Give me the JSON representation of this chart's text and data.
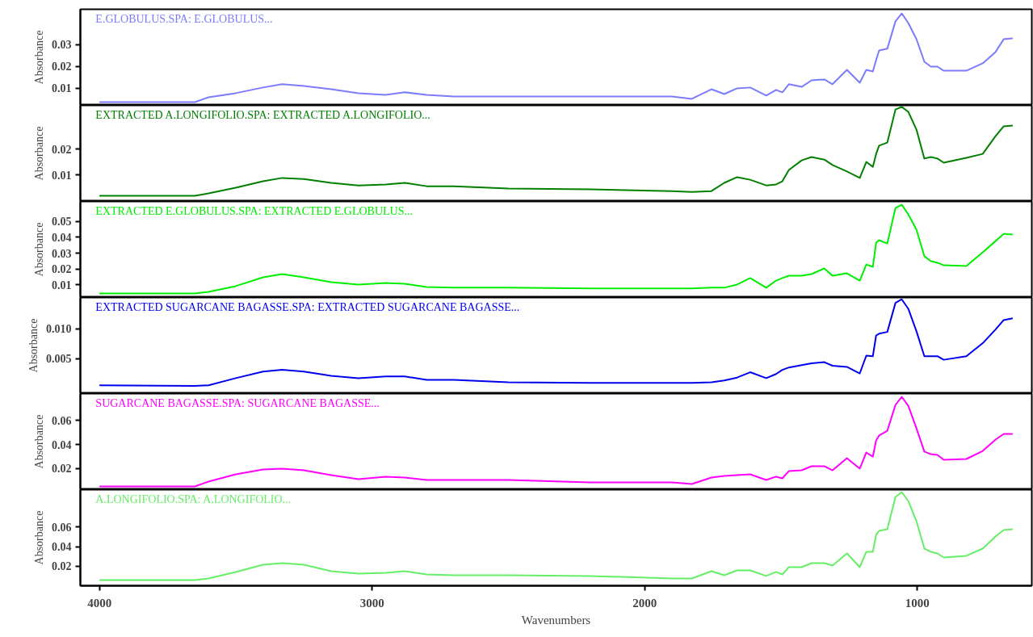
{
  "chart_data": [
    {
      "type": "line",
      "ylabel": "Absorbance",
      "tick_labels": "y",
      "xlim": [
        4070,
        580
      ],
      "ylim": [
        0.0022,
        0.0463
      ],
      "yticks": [
        0.01,
        0.02,
        0.03
      ],
      "x": [
        4000,
        3650,
        3600,
        3500,
        3400,
        3330,
        3250,
        3150,
        3050,
        2950,
        2880,
        2800,
        2700,
        2500,
        2200,
        1900,
        1827,
        1755,
        1708,
        1661,
        1613,
        1554,
        1518,
        1495,
        1471,
        1424,
        1388,
        1341,
        1311,
        1258,
        1211,
        1187,
        1163,
        1151,
        1140,
        1110,
        1080,
        1057,
        1033,
        1003,
        974,
        950,
        926,
        903,
        820,
        760,
        713,
        683,
        650
      ],
      "series": [
        {
          "name": "E.GLOBULUS.SPA: E.GLOBULUS...",
          "color": "#7b7bff",
          "values": [
            0.0037,
            0.0037,
            0.0059,
            0.0078,
            0.0104,
            0.0119,
            0.0111,
            0.0096,
            0.0078,
            0.007,
            0.0082,
            0.007,
            0.0063,
            0.0063,
            0.0063,
            0.0063,
            0.0052,
            0.0096,
            0.0074,
            0.01,
            0.0104,
            0.0067,
            0.0093,
            0.0082,
            0.0119,
            0.0107,
            0.0137,
            0.0141,
            0.0119,
            0.0185,
            0.0126,
            0.0185,
            0.0178,
            0.023,
            0.0274,
            0.0282,
            0.0408,
            0.0444,
            0.04,
            0.0326,
            0.0222,
            0.02,
            0.02,
            0.0181,
            0.0181,
            0.0215,
            0.0267,
            0.0326,
            0.033
          ]
        }
      ]
    },
    {
      "type": "line",
      "ylabel": "Absorbance",
      "tick_labels": "y",
      "xlim": [
        4070,
        580
      ],
      "ylim": [
        -0.0003,
        0.0369
      ],
      "yticks": [
        0.01,
        0.02
      ],
      "x": [
        4000,
        3650,
        3600,
        3500,
        3400,
        3330,
        3250,
        3150,
        3050,
        2950,
        2880,
        2800,
        2700,
        2500,
        2200,
        1900,
        1827,
        1755,
        1708,
        1661,
        1613,
        1554,
        1518,
        1495,
        1471,
        1424,
        1388,
        1341,
        1311,
        1258,
        1211,
        1187,
        1163,
        1151,
        1140,
        1110,
        1080,
        1057,
        1033,
        1003,
        974,
        950,
        926,
        903,
        820,
        760,
        713,
        683,
        650
      ],
      "series": [
        {
          "name": "EXTRACTED A.LONGIFOLIO.SPA: EXTRACTED A.LONGIFOLIO...",
          "color": "#007f00",
          "values": [
            0.0019,
            0.0019,
            0.0028,
            0.005,
            0.0075,
            0.0088,
            0.0084,
            0.0069,
            0.0059,
            0.0063,
            0.0069,
            0.0056,
            0.0056,
            0.0047,
            0.0044,
            0.0037,
            0.0034,
            0.0037,
            0.0069,
            0.0091,
            0.0081,
            0.0059,
            0.0063,
            0.0075,
            0.0119,
            0.0156,
            0.0169,
            0.0159,
            0.0138,
            0.0113,
            0.0088,
            0.015,
            0.0131,
            0.0181,
            0.0213,
            0.0225,
            0.0353,
            0.0363,
            0.0344,
            0.0275,
            0.0163,
            0.0169,
            0.0163,
            0.0147,
            0.0166,
            0.0181,
            0.025,
            0.0288,
            0.0291
          ]
        }
      ]
    },
    {
      "type": "line",
      "ylabel": "Absorbance",
      "tick_labels": "y",
      "xlim": [
        4070,
        580
      ],
      "ylim": [
        0.0019,
        0.0627
      ],
      "yticks": [
        0.01,
        0.02,
        0.03,
        0.04,
        0.05
      ],
      "x": [
        4000,
        3650,
        3600,
        3500,
        3400,
        3330,
        3250,
        3150,
        3050,
        2950,
        2880,
        2800,
        2700,
        2500,
        2200,
        1900,
        1827,
        1755,
        1708,
        1661,
        1613,
        1554,
        1518,
        1495,
        1471,
        1424,
        1388,
        1341,
        1311,
        1258,
        1211,
        1187,
        1163,
        1151,
        1140,
        1110,
        1080,
        1057,
        1033,
        1003,
        974,
        950,
        926,
        903,
        820,
        760,
        713,
        683,
        650
      ],
      "series": [
        {
          "name": "EXTRACTED E.GLOBULUS.SPA: EXTRACTED E.GLOBULUS...",
          "color": "#00ee00",
          "values": [
            0.0045,
            0.0045,
            0.0055,
            0.0091,
            0.0147,
            0.0167,
            0.0147,
            0.0116,
            0.0101,
            0.0111,
            0.0106,
            0.0086,
            0.0081,
            0.0081,
            0.0076,
            0.0076,
            0.0076,
            0.0081,
            0.0081,
            0.0101,
            0.0142,
            0.0081,
            0.0126,
            0.0142,
            0.0157,
            0.0157,
            0.0167,
            0.0203,
            0.0157,
            0.0172,
            0.0126,
            0.0228,
            0.0213,
            0.0366,
            0.0382,
            0.0361,
            0.0586,
            0.0606,
            0.0545,
            0.0448,
            0.028,
            0.0249,
            0.0239,
            0.0223,
            0.0218,
            0.0305,
            0.0376,
            0.0422,
            0.0417
          ]
        }
      ]
    },
    {
      "type": "line",
      "ylabel": "Absorbance",
      "tick_labels": "y",
      "xlim": [
        4070,
        580
      ],
      "ylim": [
        -0.0009,
        0.0153
      ],
      "yticks": [
        {
          "value": 0.005,
          "label": "0.005"
        },
        {
          "value": 0.01,
          "label": "0.010"
        }
      ],
      "x": [
        4000,
        3650,
        3600,
        3500,
        3400,
        3330,
        3250,
        3150,
        3050,
        2950,
        2880,
        2800,
        2700,
        2500,
        2200,
        1900,
        1827,
        1755,
        1708,
        1661,
        1613,
        1554,
        1518,
        1495,
        1471,
        1424,
        1388,
        1341,
        1311,
        1258,
        1211,
        1187,
        1163,
        1151,
        1140,
        1110,
        1080,
        1057,
        1033,
        1003,
        974,
        950,
        926,
        903,
        820,
        760,
        713,
        683,
        650
      ],
      "series": [
        {
          "name": "EXTRACTED SUGARCANE BAGASSE.SPA: EXTRACTED SUGARCANE BAGASSE...",
          "color": "#0000ee",
          "values": [
            0.0005,
            0.0004,
            0.0005,
            0.0017,
            0.0028,
            0.0031,
            0.0028,
            0.0021,
            0.0017,
            0.002,
            0.002,
            0.0014,
            0.0014,
            0.001,
            0.0009,
            0.0009,
            0.0009,
            0.001,
            0.0013,
            0.0018,
            0.0027,
            0.0017,
            0.0024,
            0.0031,
            0.0035,
            0.0039,
            0.0042,
            0.0044,
            0.0038,
            0.0036,
            0.0025,
            0.0055,
            0.0054,
            0.0089,
            0.0092,
            0.0095,
            0.0144,
            0.015,
            0.0134,
            0.0096,
            0.0054,
            0.0054,
            0.0054,
            0.0048,
            0.0054,
            0.0076,
            0.0099,
            0.0115,
            0.0118
          ]
        }
      ]
    },
    {
      "type": "line",
      "ylabel": "Absorbance",
      "tick_labels": "y",
      "xlim": [
        4070,
        580
      ],
      "ylim": [
        0.0024,
        0.0823
      ],
      "yticks": [
        0.02,
        0.04,
        0.06
      ],
      "x": [
        4000,
        3650,
        3600,
        3500,
        3400,
        3330,
        3250,
        3150,
        3050,
        2950,
        2880,
        2800,
        2700,
        2500,
        2200,
        1900,
        1827,
        1755,
        1708,
        1661,
        1613,
        1554,
        1518,
        1495,
        1471,
        1424,
        1388,
        1341,
        1311,
        1258,
        1211,
        1187,
        1163,
        1151,
        1140,
        1110,
        1080,
        1057,
        1033,
        1003,
        974,
        950,
        926,
        903,
        820,
        760,
        713,
        683,
        650
      ],
      "series": [
        {
          "name": "SUGARCANE BAGASSE.SPA: SUGARCANE BAGASSE...",
          "color": "#ff00ff",
          "values": [
            0.0051,
            0.0051,
            0.0091,
            0.0152,
            0.0192,
            0.0199,
            0.0185,
            0.0145,
            0.0111,
            0.0132,
            0.0125,
            0.0105,
            0.0105,
            0.0105,
            0.0085,
            0.0085,
            0.0071,
            0.0125,
            0.0138,
            0.0145,
            0.0152,
            0.0105,
            0.0132,
            0.0118,
            0.0179,
            0.0185,
            0.0219,
            0.0219,
            0.0185,
            0.0286,
            0.0199,
            0.0333,
            0.0299,
            0.0434,
            0.0474,
            0.0514,
            0.0729,
            0.0796,
            0.0722,
            0.0534,
            0.034,
            0.0319,
            0.0313,
            0.0272,
            0.0279,
            0.0346,
            0.044,
            0.0487,
            0.0487
          ]
        }
      ]
    },
    {
      "type": "line",
      "ylabel": "Absorbance",
      "xlabel": "Wavenumbers",
      "xlim": [
        4070,
        580
      ],
      "ylim": [
        0.0003,
        0.0979
      ],
      "yticks": [
        0.02,
        0.04,
        0.06
      ],
      "xticks": [
        1000,
        2000,
        3000,
        4000
      ],
      "x": [
        4000,
        3650,
        3600,
        3500,
        3400,
        3330,
        3250,
        3150,
        3050,
        2950,
        2880,
        2800,
        2700,
        2500,
        2200,
        1900,
        1827,
        1755,
        1708,
        1661,
        1613,
        1554,
        1518,
        1495,
        1471,
        1424,
        1388,
        1341,
        1311,
        1258,
        1211,
        1187,
        1163,
        1151,
        1140,
        1110,
        1080,
        1057,
        1033,
        1003,
        974,
        950,
        926,
        903,
        820,
        760,
        713,
        683,
        650
      ],
      "series": [
        {
          "name": "A.LONGIFOLIO.SPA: A.LONGIFOLIO...",
          "color": "#66ee66",
          "values": [
            0.0061,
            0.0061,
            0.0077,
            0.0143,
            0.0216,
            0.0233,
            0.0216,
            0.0151,
            0.0126,
            0.0134,
            0.0151,
            0.0118,
            0.011,
            0.011,
            0.0102,
            0.0077,
            0.0077,
            0.0151,
            0.011,
            0.0159,
            0.0159,
            0.0102,
            0.0143,
            0.0118,
            0.0192,
            0.0192,
            0.0233,
            0.0233,
            0.0208,
            0.0331,
            0.0192,
            0.0348,
            0.0348,
            0.052,
            0.0561,
            0.0577,
            0.0905,
            0.0954,
            0.0864,
            0.0659,
            0.038,
            0.0348,
            0.0331,
            0.029,
            0.0307,
            0.038,
            0.0503,
            0.0569,
            0.0577
          ]
        }
      ]
    }
  ]
}
